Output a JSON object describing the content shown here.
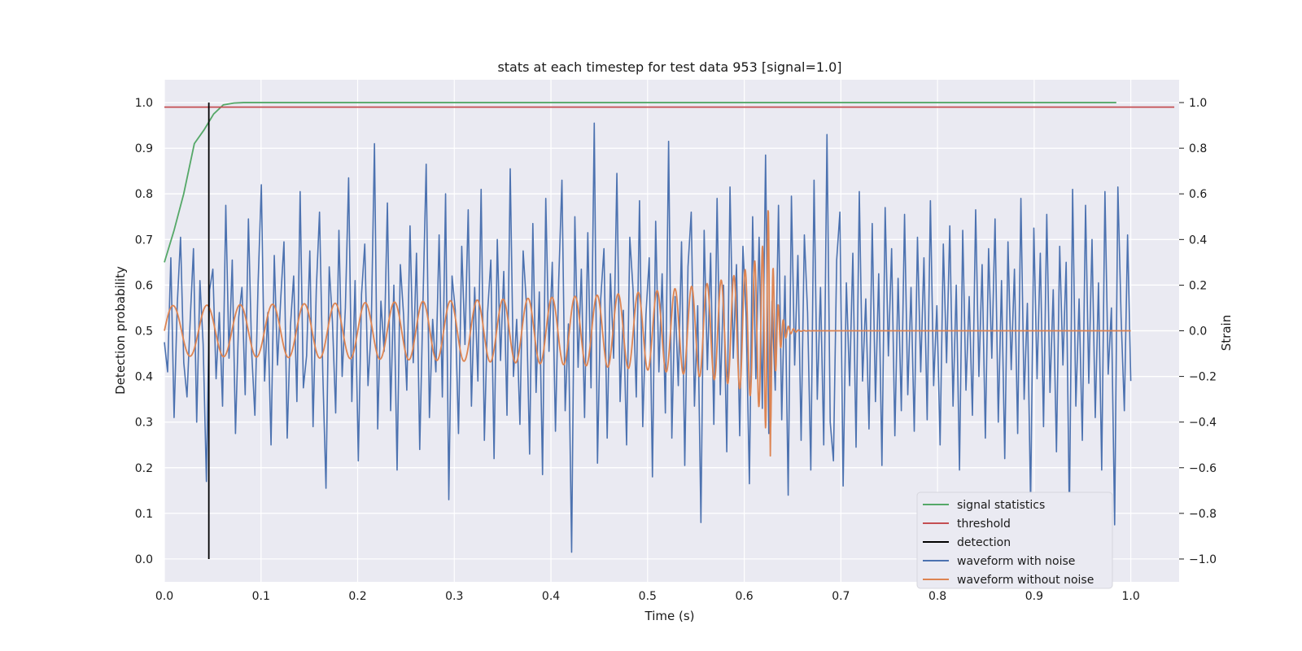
{
  "chart_data": {
    "type": "line",
    "title": "stats at each timestep for test data 953 [signal=1.0]",
    "xlabel": "Time (s)",
    "ylabel": "Detection probability",
    "y2label": "Strain",
    "xlim": [
      0.0,
      1.05
    ],
    "ylim": [
      -0.05,
      1.05
    ],
    "y2lim": [
      -1.1,
      1.1
    ],
    "xticks": [
      "0.0",
      "0.1",
      "0.2",
      "0.3",
      "0.4",
      "0.5",
      "0.6",
      "0.7",
      "0.8",
      "0.9",
      "1.0"
    ],
    "yticks": [
      "0.0",
      "0.1",
      "0.2",
      "0.3",
      "0.4",
      "0.5",
      "0.6",
      "0.7",
      "0.8",
      "0.9",
      "1.0"
    ],
    "y2ticks": [
      "−1.0",
      "−0.8",
      "−0.6",
      "−0.4",
      "−0.2",
      "0.0",
      "0.2",
      "0.4",
      "0.6",
      "0.8",
      "1.0"
    ],
    "grid": true,
    "legend_position": "lower-right",
    "colors": {
      "background": "#eaeaf2",
      "grid": "#ffffff",
      "signal_statistics": "#55a868",
      "threshold": "#c44e52",
      "detection": "#000000",
      "waveform_with_noise": "#4c72b0",
      "waveform_without_noise": "#dd8452"
    },
    "series": [
      {
        "name": "signal statistics",
        "axis": "left",
        "x": [
          0.0,
          0.01,
          0.02,
          0.031,
          0.041,
          0.051,
          0.061,
          0.072,
          0.082,
          0.1,
          0.2,
          0.4,
          0.6,
          0.8,
          0.985
        ],
        "y": [
          0.65,
          0.72,
          0.8,
          0.91,
          0.94,
          0.975,
          0.995,
          0.999,
          1.0,
          1.0,
          1.0,
          1.0,
          1.0,
          1.0,
          1.0
        ]
      },
      {
        "name": "threshold",
        "axis": "left",
        "x": [
          0.0,
          1.045
        ],
        "y": [
          0.99,
          0.99
        ]
      },
      {
        "name": "detection",
        "axis": "left",
        "x": [
          0.046,
          0.046
        ],
        "y": [
          0.0,
          1.0
        ]
      },
      {
        "name": "waveform with noise",
        "axis": "right",
        "x_start": 0.0,
        "x_end": 1.0,
        "y": [
          -0.05,
          -0.18,
          0.32,
          -0.38,
          0.12,
          0.41,
          -0.14,
          -0.29,
          0.05,
          0.36,
          -0.4,
          0.22,
          -0.06,
          -0.66,
          0.18,
          0.27,
          -0.21,
          0.08,
          -0.33,
          0.55,
          -0.12,
          0.31,
          -0.45,
          0.06,
          0.19,
          -0.28,
          0.49,
          -0.09,
          -0.37,
          0.21,
          0.64,
          -0.22,
          0.08,
          -0.5,
          0.33,
          -0.15,
          0.14,
          0.39,
          -0.47,
          0.02,
          0.24,
          -0.31,
          0.61,
          -0.25,
          -0.11,
          0.35,
          -0.42,
          0.18,
          0.52,
          -0.18,
          -0.69,
          0.28,
          0.04,
          -0.36,
          0.44,
          -0.2,
          0.1,
          0.67,
          -0.31,
          0.22,
          -0.57,
          0.16,
          0.38,
          -0.24,
          0.01,
          0.82,
          -0.43,
          0.13,
          -0.09,
          0.56,
          -0.35,
          0.2,
          -0.61,
          0.29,
          0.07,
          -0.26,
          0.46,
          -0.14,
          0.34,
          -0.52,
          0.12,
          0.73,
          -0.38,
          0.05,
          -0.18,
          0.42,
          -0.29,
          0.6,
          -0.74,
          0.24,
          0.09,
          -0.45,
          0.37,
          -0.06,
          0.53,
          -0.33,
          0.19,
          -0.22,
          0.62,
          -0.48,
          0.08,
          0.31,
          -0.56,
          0.4,
          -0.13,
          0.26,
          -0.37,
          0.71,
          -0.2,
          0.05,
          -0.41,
          0.35,
          0.12,
          -0.54,
          0.47,
          -0.27,
          0.17,
          -0.63,
          0.58,
          -0.09,
          0.3,
          -0.44,
          0.22,
          0.66,
          -0.35,
          0.03,
          -0.97,
          0.5,
          -0.16,
          0.27,
          -0.38,
          0.43,
          -0.25,
          0.91,
          -0.58,
          0.14,
          0.36,
          -0.47,
          0.25,
          -0.12,
          0.69,
          -0.31,
          0.09,
          -0.5,
          0.41,
          0.18,
          -0.29,
          0.57,
          -0.42,
          0.07,
          0.32,
          -0.64,
          0.48,
          -0.18,
          0.25,
          -0.36,
          0.83,
          -0.47,
          0.15,
          -0.24,
          0.39,
          -0.59,
          0.28,
          0.52,
          -0.33,
          0.11,
          -0.84,
          0.44,
          -0.17,
          0.34,
          -0.41,
          0.58,
          -0.28,
          0.2,
          -0.53,
          0.63,
          -0.12,
          0.29,
          -0.46,
          0.37,
          0.06,
          -0.67,
          0.5,
          -0.21,
          0.41,
          -0.34,
          0.77,
          -0.45,
          0.13,
          -0.26,
          0.55,
          -0.39,
          0.24,
          -0.72,
          0.59,
          -0.15,
          0.33,
          -0.48,
          0.42,
          0.08,
          -0.61,
          0.66,
          -0.3,
          0.19,
          -0.5,
          0.86,
          -0.4,
          -0.57,
          0.31,
          0.52,
          -0.68,
          0.21,
          -0.24,
          0.34,
          -0.51,
          0.61,
          -0.22,
          0.14,
          -0.43,
          0.47,
          -0.31,
          0.25,
          -0.59,
          0.54,
          -0.11,
          0.36,
          -0.46,
          0.23,
          -0.35,
          0.51,
          -0.28,
          0.19,
          -0.44,
          0.41,
          -0.18,
          0.32,
          -0.39,
          0.57,
          -0.24,
          0.11,
          -0.5,
          0.38,
          -0.14,
          0.46,
          -0.33,
          0.2,
          -0.61,
          0.44,
          -0.26,
          0.15,
          -0.37,
          0.53,
          -0.2,
          0.29,
          -0.47,
          0.36,
          -0.12,
          0.49,
          -0.4,
          0.22,
          -0.56,
          0.39,
          -0.17,
          0.27,
          -0.45,
          0.58,
          -0.3,
          0.12,
          -0.76,
          0.45,
          -0.21,
          0.34,
          -0.42,
          0.51,
          -0.27,
          0.18,
          -0.53,
          0.37,
          -0.15,
          0.3,
          -0.82,
          0.62,
          -0.33,
          0.14,
          -0.48,
          0.55,
          -0.23,
          0.4,
          -0.38,
          0.21,
          -0.61,
          0.61,
          -0.19,
          0.1,
          -0.85,
          0.63,
          0.06,
          -0.35,
          0.42,
          -0.22
        ]
      },
      {
        "name": "waveform without noise",
        "axis": "right",
        "x_start": 0.0,
        "x_end": 1.0,
        "waveform_model": {
          "amplitude_start": 0.11,
          "amplitude_peak": 0.6,
          "frequency_start_hz": 28,
          "frequency_peak_hz": 190,
          "merger_time_s": 0.627,
          "ringdown_end_s": 0.66
        }
      }
    ]
  }
}
